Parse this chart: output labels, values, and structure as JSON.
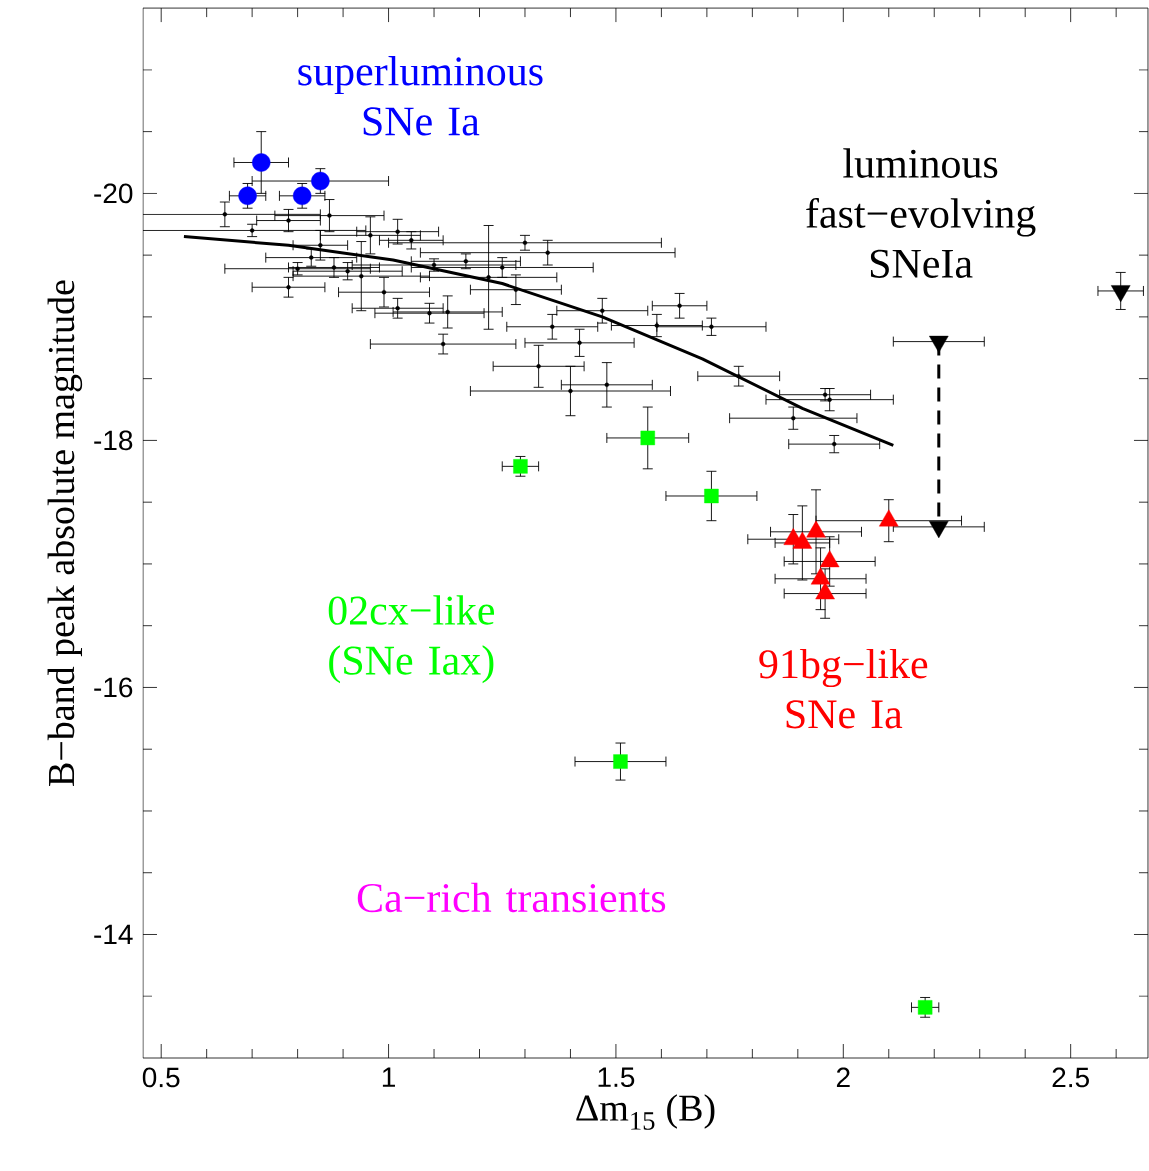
{
  "chart_data": {
    "type": "scatter",
    "xlabel": "Δm$_{15}$ (B)",
    "ylabel": "B−band peak absolute magnitude",
    "xlim": [
      0.46,
      2.67
    ],
    "ylim": [
      -13.0,
      -21.5
    ],
    "xticks": [
      0.5,
      1,
      1.5,
      2,
      2.5,
      {
        "value": 0.6,
        "label": null
      },
      {
        "value": 0.7,
        "label": null
      },
      {
        "value": 0.8,
        "label": null
      },
      {
        "value": 0.9,
        "label": null
      },
      {
        "value": 1.1,
        "label": null
      },
      {
        "value": 1.2,
        "label": null
      },
      {
        "value": 1.3,
        "label": null
      },
      {
        "value": 1.4,
        "label": null
      },
      {
        "value": 1.6,
        "label": null
      },
      {
        "value": 1.7,
        "label": null
      },
      {
        "value": 1.8,
        "label": null
      },
      {
        "value": 1.9,
        "label": null
      },
      {
        "value": 2.1,
        "label": null
      },
      {
        "value": 2.2,
        "label": null
      },
      {
        "value": 2.3,
        "label": null
      },
      {
        "value": 2.4,
        "label": null
      },
      {
        "value": 2.6,
        "label": null
      }
    ],
    "yticks": [
      -20,
      -18,
      -16,
      -14,
      {
        "value": -21,
        "label": null
      },
      {
        "value": -20.5,
        "label": null
      },
      {
        "value": -19.5,
        "label": null
      },
      {
        "value": -19,
        "label": null
      },
      {
        "value": -18.5,
        "label": null
      },
      {
        "value": -17.5,
        "label": null
      },
      {
        "value": -17,
        "label": null
      },
      {
        "value": -16.5,
        "label": null
      },
      {
        "value": -15.5,
        "label": null
      },
      {
        "value": -15,
        "label": null
      },
      {
        "value": -14.5,
        "label": null
      },
      {
        "value": -13.5,
        "label": null
      }
    ],
    "annotations": [
      "superluminous SNe Ia",
      "luminous fast−evolving SNeIa",
      "02cx−like (SNe Iax)",
      "91bg−like SNe Ia",
      "Ca−rich transients"
    ],
    "series": [
      {
        "marker": "none",
        "color": "#000000",
        "x": [
          0.64,
          0.78,
          0.87,
          0.7,
          1.02,
          1.05,
          0.96,
          1.22,
          1.35,
          0.83,
          0.8,
          0.78,
          0.88,
          0.91,
          0.94,
          0.99,
          1.02,
          1.09,
          1.13,
          1.12,
          1.28,
          1.36,
          1.33,
          1.4,
          1.48,
          1.42,
          1.47,
          1.64,
          1.71,
          1.59,
          1.77,
          1.97,
          1.96,
          1.89,
          1.98,
          0.85,
          1.17,
          1.3,
          1.1,
          1.25
        ],
        "values": [
          -19.83,
          -19.78,
          -19.82,
          -19.7,
          -19.69,
          -19.62,
          -19.66,
          -19.32,
          -19.52,
          -19.48,
          -19.39,
          -19.24,
          -19.4,
          -19.37,
          -19.33,
          -19.2,
          -19.07,
          -19.03,
          -19.04,
          -18.78,
          -19.22,
          -18.92,
          -18.6,
          -18.4,
          -18.45,
          -18.79,
          -19.05,
          -19.09,
          -18.92,
          -18.93,
          -18.52,
          -18.33,
          -18.37,
          -18.18,
          -17.97,
          -19.58,
          -19.45,
          -19.6,
          -19.42,
          -19.4
        ],
        "xerrors": [
          0.21,
          0.07,
          0.12,
          0.25,
          0.09,
          0.07,
          0.11,
          0.15,
          0.28,
          0.1,
          0.16,
          0.08,
          0.1,
          0.12,
          0.15,
          0.1,
          0.1,
          0.12,
          0.12,
          0.16,
          0.1,
          0.1,
          0.1,
          0.22,
          0.1,
          0.12,
          0.1,
          0.06,
          0.12,
          0.1,
          0.09,
          0.14,
          0.1,
          0.14,
          0.1,
          0.06,
          0.12,
          0.3,
          0.18,
          0.2
        ],
        "errors": [
          0.1,
          0.09,
          0.13,
          0.05,
          0.1,
          0.07,
          0.15,
          0.42,
          0.1,
          0.07,
          0.05,
          0.08,
          0.08,
          0.07,
          0.28,
          0.12,
          0.08,
          0.08,
          0.13,
          0.08,
          0.12,
          0.1,
          0.17,
          0.2,
          0.18,
          0.11,
          0.1,
          0.1,
          0.07,
          0.09,
          0.08,
          0.09,
          0.05,
          0.09,
          0.07,
          0.12,
          0.06,
          0.06,
          0.05,
          0.08
        ]
      },
      {
        "type": "line",
        "line_style": "solid",
        "color": "#000000",
        "x": [
          0.55,
          0.78,
          1.01,
          1.25,
          1.47,
          1.69,
          1.91,
          2.11
        ],
        "values": [
          -19.65,
          -19.58,
          -19.46,
          -19.27,
          -19.0,
          -18.66,
          -18.26,
          -17.96
        ]
      },
      {
        "marker": "circle",
        "color": "#0000ff",
        "x": [
          0.72,
          0.69,
          0.81,
          0.85
        ],
        "values": [
          -20.25,
          -19.98,
          -19.98,
          -20.1
        ],
        "xerrors": [
          0.06,
          0.04,
          0.05,
          0.15
        ],
        "errors": [
          0.25,
          0.1,
          0.1,
          0.1
        ]
      },
      {
        "marker": "square",
        "color": "#00ff00",
        "x": [
          1.29,
          1.57,
          1.71,
          1.51,
          2.18
        ],
        "values": [
          -17.79,
          -18.02,
          -17.55,
          -15.4,
          -13.41
        ],
        "xerrors": [
          0.04,
          0.09,
          0.1,
          0.1,
          0.03
        ],
        "errors": [
          0.08,
          0.25,
          0.2,
          0.15,
          0.08
        ]
      },
      {
        "marker": "triangle",
        "color": "#ff0000",
        "x": [
          1.89,
          1.91,
          1.94,
          1.97,
          1.95,
          1.96,
          2.1
        ],
        "values": [
          -17.2,
          -17.17,
          -17.26,
          -17.02,
          -16.88,
          -16.76,
          -17.35
        ],
        "xerrors": [
          0.1,
          0.06,
          0.1,
          0.1,
          0.1,
          0.09,
          0.16
        ],
        "errors": [
          0.2,
          0.3,
          0.34,
          0.2,
          0.25,
          0.2,
          0.17
        ]
      },
      {
        "type": "line",
        "line_style": "dashed",
        "color": "#000000",
        "x": [
          2.21,
          2.21
        ],
        "values": [
          -18.8,
          -17.3
        ]
      },
      {
        "marker": "triangle down",
        "color": "#000000",
        "x": [
          2.21,
          2.21,
          2.61
        ],
        "values": [
          -18.8,
          -17.3,
          -19.21
        ],
        "xerrors": [
          0.1,
          0.1,
          0.05
        ],
        "errors": [
          0.0,
          0.0,
          0.15
        ]
      }
    ]
  }
}
